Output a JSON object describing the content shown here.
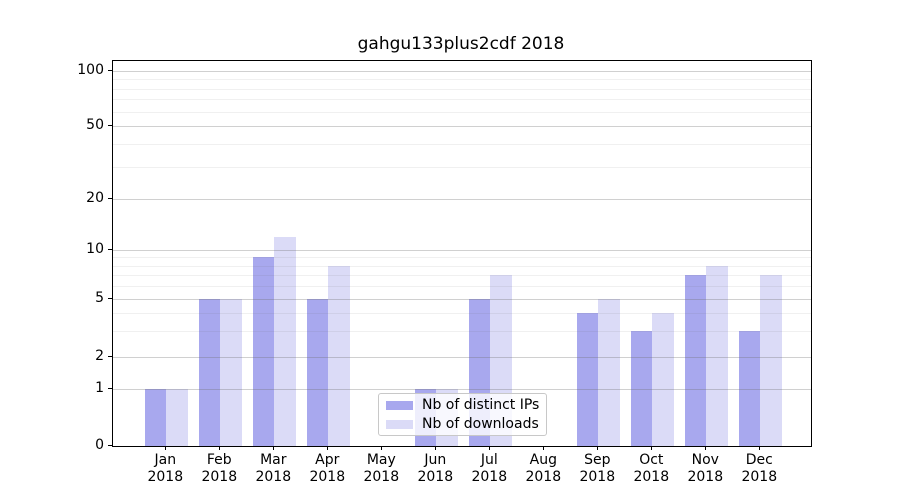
{
  "title": "gahgu133plus2cdf 2018",
  "colors": {
    "distinct_ips": "#a8a8ee",
    "downloads": "#dbdbf7",
    "axis": "#000000",
    "grid_major": "#cdcdcd",
    "grid_minor": "#eaeaea"
  },
  "legend": {
    "items": [
      {
        "label": "Nb of distinct IPs",
        "series": "distinct_ips"
      },
      {
        "label": "Nb of downloads",
        "series": "downloads"
      }
    ]
  },
  "y_axis": {
    "tick_values": [
      0,
      1,
      2,
      5,
      10,
      20,
      50,
      100
    ],
    "tick_labels": [
      "0",
      "1",
      "2",
      "5",
      "10",
      "20",
      "50",
      "100"
    ],
    "minor_values": [
      3,
      4,
      6,
      7,
      8,
      9,
      30,
      40,
      60,
      70,
      80,
      90
    ]
  },
  "x_axis": {
    "tick_labels": [
      "Jan\n2018",
      "Feb\n2018",
      "Mar\n2018",
      "Apr\n2018",
      "May\n2018",
      "Jun\n2018",
      "Jul\n2018",
      "Aug\n2018",
      "Sep\n2018",
      "Oct\n2018",
      "Nov\n2018",
      "Dec\n2018"
    ]
  },
  "chart_data": {
    "type": "bar",
    "title": "gahgu133plus2cdf 2018",
    "categories": [
      "Jan 2018",
      "Feb 2018",
      "Mar 2018",
      "Apr 2018",
      "May 2018",
      "Jun 2018",
      "Jul 2018",
      "Aug 2018",
      "Sep 2018",
      "Oct 2018",
      "Nov 2018",
      "Dec 2018"
    ],
    "series": [
      {
        "name": "Nb of distinct IPs",
        "color": "#a8a8ee",
        "values": [
          1,
          5,
          9,
          5,
          0,
          1,
          5,
          0,
          4,
          3,
          7,
          3
        ]
      },
      {
        "name": "Nb of downloads",
        "color": "#dbdbf7",
        "values": [
          1,
          5,
          12,
          8,
          0,
          1,
          7,
          0,
          5,
          4,
          8,
          7
        ]
      }
    ],
    "xlabel": "",
    "ylabel": "",
    "yscale": "symlog",
    "yticks": [
      0,
      1,
      2,
      5,
      10,
      20,
      50,
      100
    ],
    "ylim": [
      0,
      120
    ],
    "grid": "on",
    "legend_position": "lower center"
  }
}
